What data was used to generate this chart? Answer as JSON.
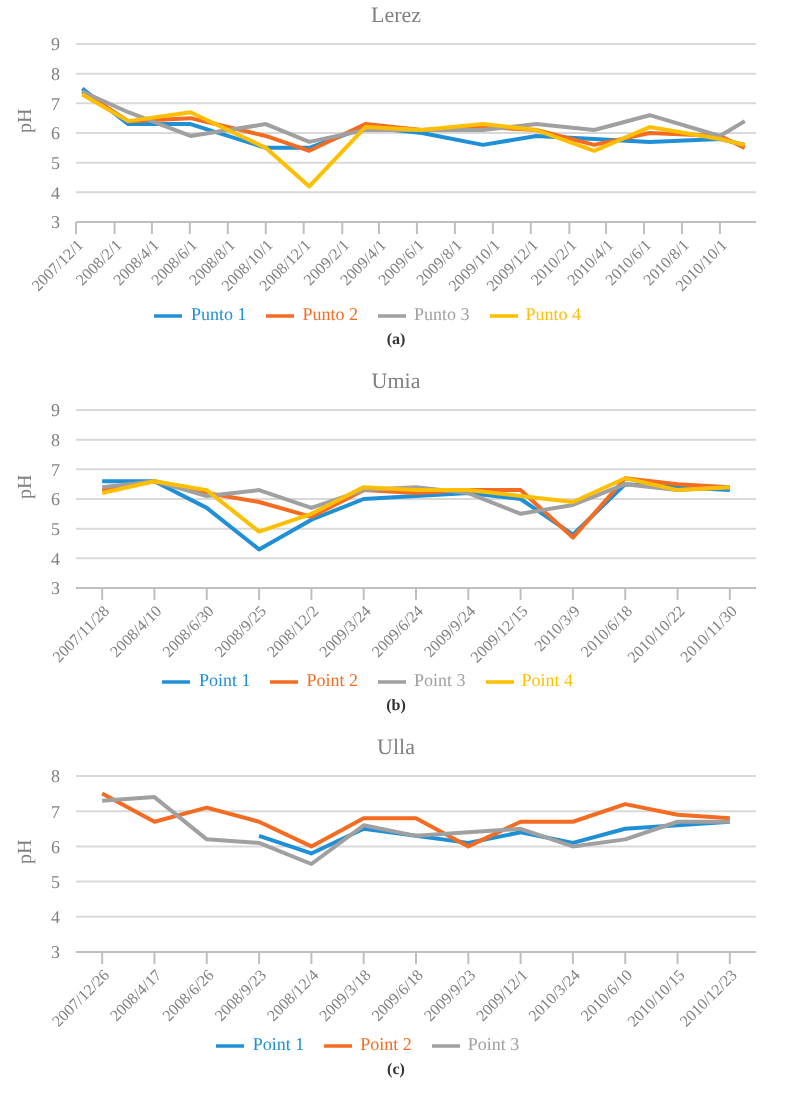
{
  "chart_data": [
    {
      "type": "line",
      "title": "Lerez",
      "ylabel": "pH",
      "annotations": [
        "(a)"
      ],
      "x": [
        "2007-12-11",
        "2008-02-23",
        "2008-06-02",
        "2008-10-01",
        "2008-12-10",
        "2009-03-10",
        "2009-06-09",
        "2009-09-15",
        "2009-12-10",
        "2010-03-13",
        "2010-06-10",
        "2010-10-01",
        "2010-11-10"
      ],
      "xlim": [
        "2007-12-01",
        "2010-11-28"
      ],
      "xticks": [
        {
          "value": "2007-12-01",
          "label": "2007/12/1"
        },
        {
          "value": "2008-02-01",
          "label": "2008/2/1"
        },
        {
          "value": "2008-04-01",
          "label": "2008/4/1"
        },
        {
          "value": "2008-06-01",
          "label": "2008/6/1"
        },
        {
          "value": "2008-08-01",
          "label": "2008/8/1"
        },
        {
          "value": "2008-10-01",
          "label": "2008/10/1"
        },
        {
          "value": "2008-12-01",
          "label": "2008/12/1"
        },
        {
          "value": "2009-02-01",
          "label": "2009/2/1"
        },
        {
          "value": "2009-04-01",
          "label": "2009/4/1"
        },
        {
          "value": "2009-06-01",
          "label": "2009/6/1"
        },
        {
          "value": "2009-08-01",
          "label": "2009/8/1"
        },
        {
          "value": "2009-10-01",
          "label": "2009/10/1"
        },
        {
          "value": "2009-12-01",
          "label": "2009/12/1"
        },
        {
          "value": "2010-02-01",
          "label": "2010/2/1"
        },
        {
          "value": "2010-04-01",
          "label": "2010/4/1"
        },
        {
          "value": "2010-06-01",
          "label": "2010/6/1"
        },
        {
          "value": "2010-08-01",
          "label": "2010/8/1"
        },
        {
          "value": "2010-10-01",
          "label": "2010/10/1"
        }
      ],
      "ylim": [
        3,
        9
      ],
      "yticks": [
        3,
        4,
        5,
        6,
        7,
        8,
        9
      ],
      "grid": "y",
      "legend": "bottom",
      "series": [
        {
          "name": "Punto 1",
          "color": "#1f8fd6",
          "values": [
            7.5,
            6.3,
            6.3,
            5.5,
            5.5,
            6.2,
            6.0,
            5.6,
            5.9,
            5.8,
            5.7,
            5.8,
            5.6
          ]
        },
        {
          "name": "Punto 2",
          "color": "#f36c21",
          "values": [
            7.4,
            6.4,
            6.5,
            5.9,
            5.4,
            6.3,
            6.1,
            6.2,
            6.1,
            5.6,
            6.0,
            5.9,
            5.5
          ]
        },
        {
          "name": "Punto 3",
          "color": "#a0a0a0",
          "values": [
            7.4,
            6.7,
            5.9,
            6.3,
            5.7,
            6.1,
            6.1,
            6.1,
            6.3,
            6.1,
            6.6,
            5.9,
            6.4
          ]
        },
        {
          "name": "Punto 4",
          "color": "#fdbf00",
          "values": [
            7.3,
            6.4,
            6.7,
            5.5,
            4.2,
            6.2,
            6.1,
            6.3,
            6.1,
            5.4,
            6.2,
            5.8,
            5.6
          ]
        }
      ]
    },
    {
      "type": "line",
      "title": "Umia",
      "ylabel": "pH",
      "annotations": [
        "(b)"
      ],
      "categories": [
        "2007/11/28",
        "2008/4/10",
        "2008/6/30",
        "2008/9/25",
        "2008/12/2",
        "2009/3/24",
        "2009/6/24",
        "2009/9/24",
        "2009/12/15",
        "2010/3/9",
        "2010/6/18",
        "2010/10/22",
        "2010/11/30"
      ],
      "ylim": [
        3,
        9
      ],
      "yticks": [
        3,
        4,
        5,
        6,
        7,
        8,
        9
      ],
      "grid": "y",
      "legend": "bottom",
      "series": [
        {
          "name": "Point 1",
          "color": "#1f8fd6",
          "values": [
            6.6,
            6.6,
            5.7,
            4.3,
            5.3,
            6.0,
            6.1,
            6.2,
            6.0,
            4.8,
            6.5,
            6.4,
            6.3
          ]
        },
        {
          "name": "Point 2",
          "color": "#f36c21",
          "values": [
            6.3,
            6.6,
            6.2,
            5.9,
            5.4,
            6.3,
            6.2,
            6.3,
            6.3,
            4.7,
            6.7,
            6.5,
            6.4
          ]
        },
        {
          "name": "Point 3",
          "color": "#a0a0a0",
          "values": [
            6.4,
            6.6,
            6.1,
            6.3,
            5.7,
            6.3,
            6.4,
            6.2,
            5.5,
            5.8,
            6.5,
            6.3,
            6.4
          ]
        },
        {
          "name": "Point 4",
          "color": "#fdbf00",
          "values": [
            6.2,
            6.6,
            6.3,
            4.9,
            5.5,
            6.4,
            6.3,
            6.3,
            6.1,
            5.9,
            6.7,
            6.3,
            6.4
          ]
        }
      ]
    },
    {
      "type": "line",
      "title": "Ulla",
      "ylabel": "pH",
      "annotations": [
        "(c)"
      ],
      "categories": [
        "2007/12/26",
        "2008/4/17",
        "2008/6/26",
        "2008/9/23",
        "2008/12/4",
        "2009/3/18",
        "2009/6/18",
        "2009/9/23",
        "2009/12/1",
        "2010/3/24",
        "2010/6/10",
        "2010/10/15",
        "2010/12/23"
      ],
      "ylim": [
        3,
        8
      ],
      "yticks": [
        3,
        4,
        5,
        6,
        7,
        8
      ],
      "grid": "y",
      "legend": "bottom",
      "series": [
        {
          "name": "Point 1",
          "color": "#1f8fd6",
          "values": [
            null,
            null,
            null,
            6.3,
            5.8,
            6.5,
            6.3,
            6.1,
            6.4,
            6.1,
            6.5,
            6.6,
            6.7
          ]
        },
        {
          "name": "Point 2",
          "color": "#f36c21",
          "values": [
            7.5,
            6.7,
            7.1,
            6.7,
            6.0,
            6.8,
            6.8,
            6.0,
            6.7,
            6.7,
            7.2,
            6.9,
            6.8
          ]
        },
        {
          "name": "Point 3",
          "color": "#a0a0a0",
          "values": [
            7.3,
            7.4,
            6.2,
            6.1,
            5.5,
            6.6,
            6.3,
            6.4,
            6.5,
            6.0,
            6.2,
            6.7,
            6.7
          ]
        }
      ]
    }
  ]
}
